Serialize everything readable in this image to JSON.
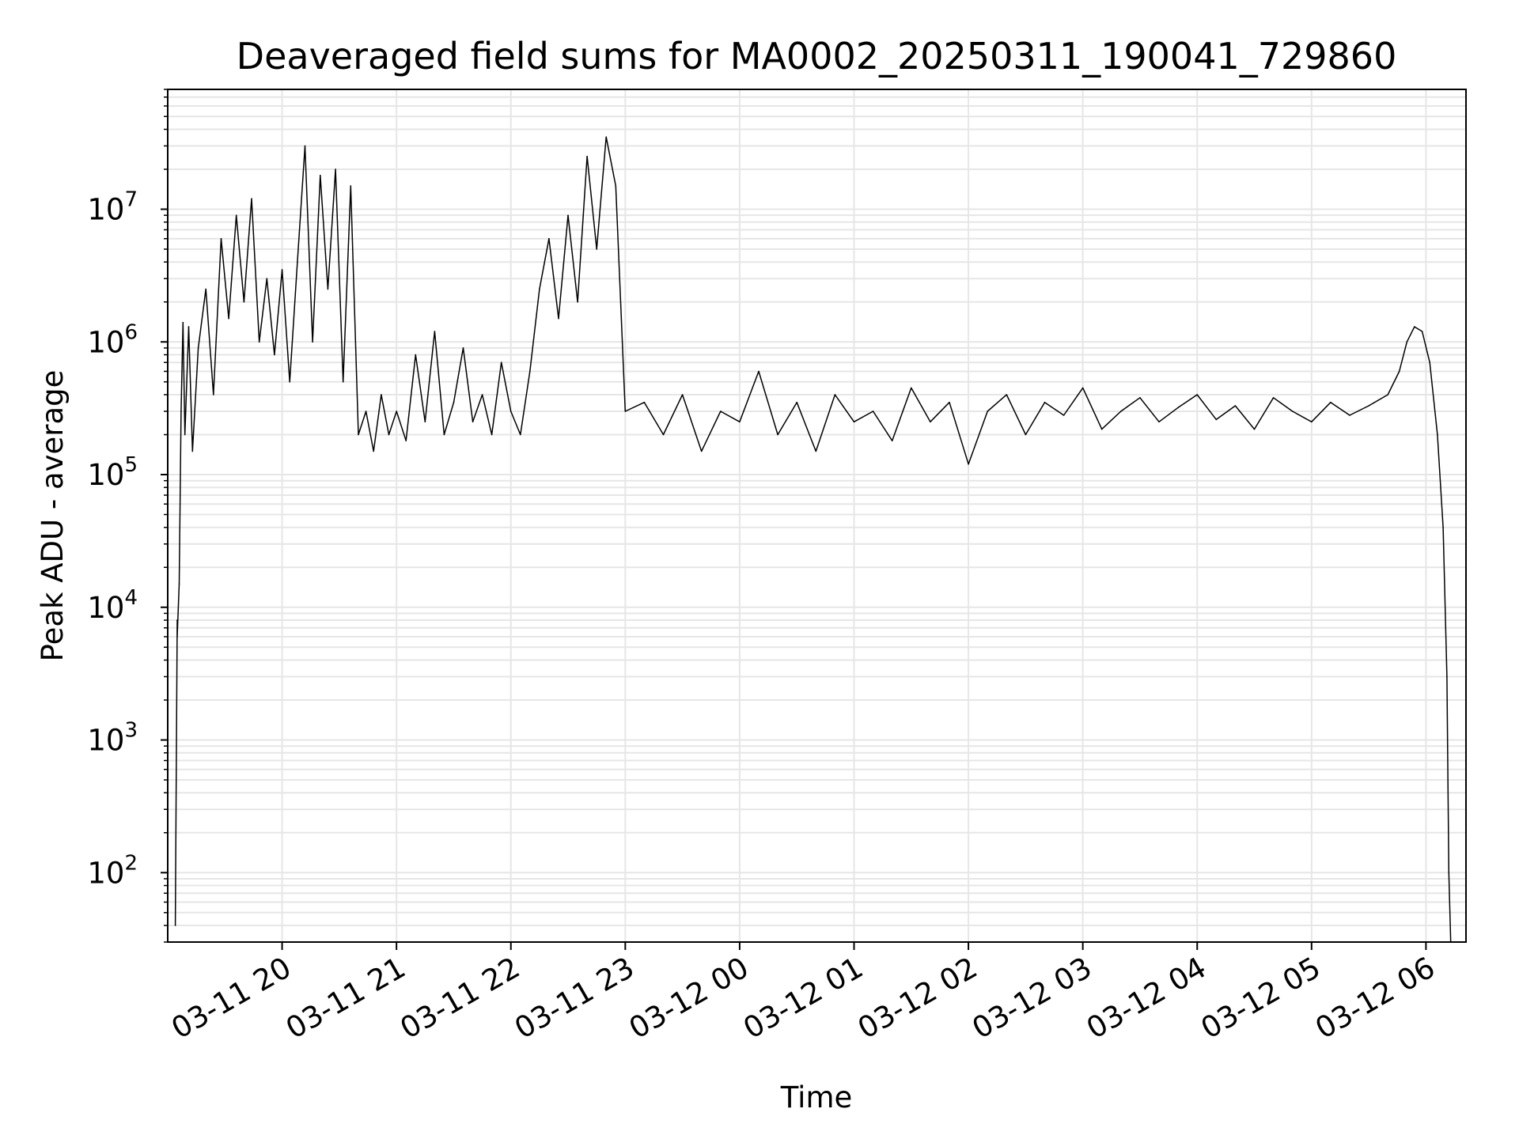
{
  "chart_data": {
    "type": "line",
    "title": "Deaveraged field sums for MA0002_20250311_190041_729860",
    "xlabel": "Time",
    "ylabel": "Peak ADU - average",
    "yscale": "log",
    "ylim": [
      30,
      80000000
    ],
    "xlim": [
      "2025-03-11 19:00",
      "2025-03-12 06:21"
    ],
    "grid": true,
    "grid_minor": true,
    "line_color": "#000000",
    "grid_color": "#e6e6e6",
    "x_ticks": [
      {
        "value": "2025-03-11 20:00",
        "label": "03-11 20"
      },
      {
        "value": "2025-03-11 21:00",
        "label": "03-11 21"
      },
      {
        "value": "2025-03-11 22:00",
        "label": "03-11 22"
      },
      {
        "value": "2025-03-11 23:00",
        "label": "03-11 23"
      },
      {
        "value": "2025-03-12 00:00",
        "label": "03-12 00"
      },
      {
        "value": "2025-03-12 01:00",
        "label": "03-12 01"
      },
      {
        "value": "2025-03-12 02:00",
        "label": "03-12 02"
      },
      {
        "value": "2025-03-12 03:00",
        "label": "03-12 03"
      },
      {
        "value": "2025-03-12 04:00",
        "label": "03-12 04"
      },
      {
        "value": "2025-03-12 05:00",
        "label": "03-12 05"
      },
      {
        "value": "2025-03-12 06:00",
        "label": "03-12 06"
      }
    ],
    "y_ticks": [
      {
        "value": 100,
        "base": "10",
        "exp": "2"
      },
      {
        "value": 1000,
        "base": "10",
        "exp": "3"
      },
      {
        "value": 10000,
        "base": "10",
        "exp": "4"
      },
      {
        "value": 100000,
        "base": "10",
        "exp": "5"
      },
      {
        "value": 1000000,
        "base": "10",
        "exp": "6"
      },
      {
        "value": 10000000,
        "base": "10",
        "exp": "7"
      }
    ],
    "series": [
      {
        "x": [
          "2025-03-11 19:04",
          "2025-03-11 19:05",
          "2025-03-11 19:05",
          "2025-03-11 19:06",
          "2025-03-11 19:07",
          "2025-03-11 19:08",
          "2025-03-11 19:09",
          "2025-03-11 19:11",
          "2025-03-11 19:13",
          "2025-03-11 19:16",
          "2025-03-11 19:20",
          "2025-03-11 19:24",
          "2025-03-11 19:28",
          "2025-03-11 19:32",
          "2025-03-11 19:36",
          "2025-03-11 19:40",
          "2025-03-11 19:44",
          "2025-03-11 19:48",
          "2025-03-11 19:52",
          "2025-03-11 19:56",
          "2025-03-11 20:00",
          "2025-03-11 20:04",
          "2025-03-11 20:08",
          "2025-03-11 20:12",
          "2025-03-11 20:16",
          "2025-03-11 20:20",
          "2025-03-11 20:24",
          "2025-03-11 20:28",
          "2025-03-11 20:32",
          "2025-03-11 20:36",
          "2025-03-11 20:40",
          "2025-03-11 20:44",
          "2025-03-11 20:48",
          "2025-03-11 20:52",
          "2025-03-11 20:56",
          "2025-03-11 21:00",
          "2025-03-11 21:05",
          "2025-03-11 21:10",
          "2025-03-11 21:15",
          "2025-03-11 21:20",
          "2025-03-11 21:25",
          "2025-03-11 21:30",
          "2025-03-11 21:35",
          "2025-03-11 21:40",
          "2025-03-11 21:45",
          "2025-03-11 21:50",
          "2025-03-11 21:55",
          "2025-03-11 22:00",
          "2025-03-11 22:05",
          "2025-03-11 22:10",
          "2025-03-11 22:15",
          "2025-03-11 22:20",
          "2025-03-11 22:25",
          "2025-03-11 22:30",
          "2025-03-11 22:35",
          "2025-03-11 22:40",
          "2025-03-11 22:45",
          "2025-03-11 22:50",
          "2025-03-11 22:55",
          "2025-03-11 23:00",
          "2025-03-11 23:10",
          "2025-03-11 23:20",
          "2025-03-11 23:30",
          "2025-03-11 23:40",
          "2025-03-11 23:50",
          "2025-03-12 00:00",
          "2025-03-12 00:10",
          "2025-03-12 00:20",
          "2025-03-12 00:30",
          "2025-03-12 00:40",
          "2025-03-12 00:50",
          "2025-03-12 01:00",
          "2025-03-12 01:10",
          "2025-03-12 01:20",
          "2025-03-12 01:30",
          "2025-03-12 01:40",
          "2025-03-12 01:50",
          "2025-03-12 02:00",
          "2025-03-12 02:10",
          "2025-03-12 02:20",
          "2025-03-12 02:30",
          "2025-03-12 02:40",
          "2025-03-12 02:50",
          "2025-03-12 03:00",
          "2025-03-12 03:10",
          "2025-03-12 03:20",
          "2025-03-12 03:30",
          "2025-03-12 03:40",
          "2025-03-12 03:50",
          "2025-03-12 04:00",
          "2025-03-12 04:10",
          "2025-03-12 04:20",
          "2025-03-12 04:30",
          "2025-03-12 04:40",
          "2025-03-12 04:50",
          "2025-03-12 05:00",
          "2025-03-12 05:10",
          "2025-03-12 05:20",
          "2025-03-12 05:30",
          "2025-03-12 05:40",
          "2025-03-12 05:46",
          "2025-03-12 05:50",
          "2025-03-12 05:54",
          "2025-03-12 05:58",
          "2025-03-12 06:02",
          "2025-03-12 06:06",
          "2025-03-12 06:09",
          "2025-03-12 06:11",
          "2025-03-12 06:12",
          "2025-03-12 06:13"
        ],
        "values": [
          40,
          8000,
          6000,
          15000,
          300000,
          1400000,
          200000,
          1300000,
          150000,
          900000,
          2500000,
          400000,
          6000000,
          1500000,
          9000000,
          2000000,
          12000000,
          1000000,
          3000000,
          800000,
          3500000,
          500000,
          4000000,
          30000000,
          1000000,
          18000000,
          2500000,
          20000000,
          500000,
          15000000,
          200000,
          300000,
          150000,
          400000,
          200000,
          300000,
          180000,
          800000,
          250000,
          1200000,
          200000,
          350000,
          900000,
          250000,
          400000,
          200000,
          700000,
          300000,
          200000,
          600000,
          2500000,
          6000000,
          1500000,
          9000000,
          2000000,
          25000000,
          5000000,
          35000000,
          15000000,
          300000,
          350000,
          200000,
          400000,
          150000,
          300000,
          250000,
          600000,
          200000,
          350000,
          150000,
          400000,
          250000,
          300000,
          180000,
          450000,
          250000,
          350000,
          120000,
          300000,
          400000,
          200000,
          350000,
          280000,
          450000,
          220000,
          300000,
          380000,
          250000,
          320000,
          400000,
          260000,
          330000,
          220000,
          380000,
          300000,
          250000,
          350000,
          280000,
          330000,
          400000,
          600000,
          1000000,
          1300000,
          1200000,
          700000,
          200000,
          40000,
          3000,
          100,
          30
        ]
      }
    ]
  }
}
